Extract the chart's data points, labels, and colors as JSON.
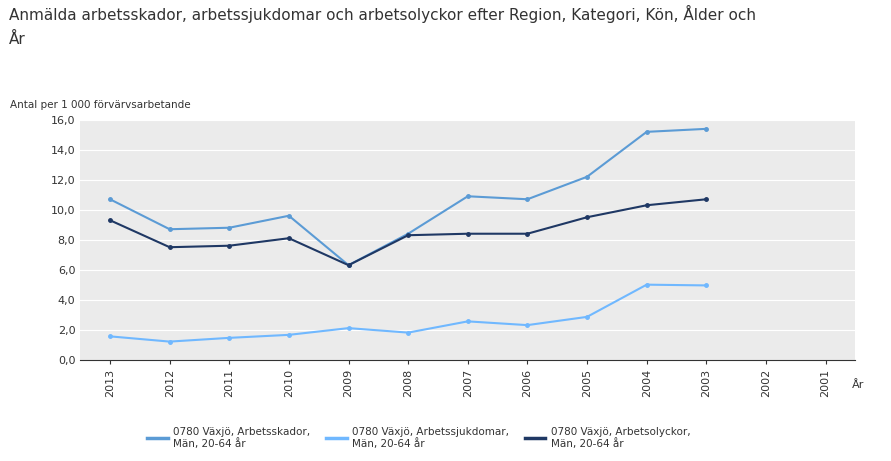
{
  "title_line1": "Anmälda arbetsskador, arbetssjukdomar och arbetsolyckor efter Region, Kategori, Kön, Ålder och",
  "title_line2": "År",
  "ylabel": "Antal per 1 000 förvärvsarbetande",
  "xlabel": "År",
  "years": [
    2013,
    2012,
    2011,
    2010,
    2009,
    2008,
    2007,
    2006,
    2005,
    2004,
    2003,
    2002,
    2001
  ],
  "arbetsskador": [
    10.7,
    8.7,
    8.8,
    9.6,
    6.3,
    8.4,
    10.9,
    10.7,
    12.2,
    15.2,
    15.4,
    null,
    null
  ],
  "arbetssjukdomar": [
    1.55,
    1.2,
    1.45,
    1.65,
    2.1,
    1.8,
    2.55,
    2.3,
    2.85,
    5.0,
    4.95,
    null,
    null
  ],
  "arbetsolyckor": [
    9.3,
    7.5,
    7.6,
    8.1,
    6.3,
    8.3,
    8.4,
    8.4,
    9.5,
    10.3,
    10.7,
    null,
    null
  ],
  "color_arbetsskador": "#5B9BD5",
  "color_arbetssjukdomar": "#70B8FF",
  "color_arbetsolyckor": "#1F3864",
  "ylim": [
    0,
    16
  ],
  "ytick_vals": [
    0.0,
    2.0,
    4.0,
    6.0,
    8.0,
    10.0,
    12.0,
    14.0,
    16.0
  ],
  "ytick_labels": [
    "0,0",
    "2,0",
    "4,0",
    "6,0",
    "8,0",
    "10,0",
    "12,0",
    "14,0",
    "16,0"
  ],
  "bg_color": "#EBEBEB",
  "grid_color": "#FFFFFF",
  "legend_labels": [
    "0780 Växjö, Arbetsskador,\nMän, 20-64 år",
    "0780 Växjö, Arbetssjukdomar,\nMän, 20-64 år",
    "0780 Växjö, Arbetsolyckor,\nMän, 20-64 år"
  ]
}
